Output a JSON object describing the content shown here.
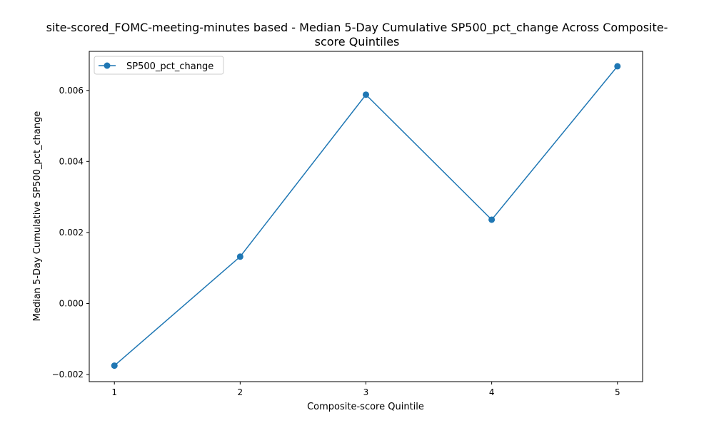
{
  "chart_data": {
    "type": "line",
    "title_lines": [
      "site-scored_FOMC-meeting-minutes based - Median 5-Day Cumulative SP500_pct_change Across Composite-",
      "score Quintiles"
    ],
    "xlabel": "Composite-score Quintile",
    "ylabel": "Median 5-Day Cumulative SP500_pct_change",
    "x": [
      1,
      2,
      3,
      4,
      5
    ],
    "x_tick_labels": [
      "1",
      "2",
      "3",
      "4",
      "5"
    ],
    "y_ticks": [
      -0.002,
      0.0,
      0.002,
      0.004,
      0.006
    ],
    "y_tick_labels": [
      "−0.002",
      "0.000",
      "0.002",
      "0.004",
      "0.006"
    ],
    "xlim": [
      0.8,
      5.2
    ],
    "ylim": [
      -0.0022,
      0.0071
    ],
    "grid": false,
    "legend_position": "upper-left",
    "series": [
      {
        "name": "SP500_pct_change",
        "values": [
          -0.00175,
          0.00132,
          0.00588,
          0.00236,
          0.00668
        ],
        "color": "#1f77b4",
        "marker": "circle"
      }
    ]
  }
}
